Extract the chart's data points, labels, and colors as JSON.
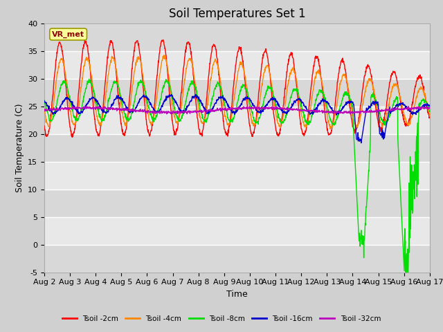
{
  "title": "Soil Temperatures Set 1",
  "xlabel": "Time",
  "ylabel": "Soil Temperature (C)",
  "ylim": [
    -5,
    40
  ],
  "yticks": [
    -5,
    0,
    5,
    10,
    15,
    20,
    25,
    30,
    35,
    40
  ],
  "date_labels": [
    "Aug 2",
    "Aug 3",
    "Aug 4",
    "Aug 5",
    "Aug 6",
    "Aug 7",
    "Aug 8",
    "Aug 9",
    "Aug 10",
    "Aug 11",
    "Aug 12",
    "Aug 13",
    "Aug 14",
    "Aug 15",
    "Aug 16",
    "Aug 17"
  ],
  "series_colors": [
    "#ff0000",
    "#ff8800",
    "#00dd00",
    "#0000cc",
    "#bb00bb"
  ],
  "series_labels": [
    "Tsoil -2cm",
    "Tsoil -4cm",
    "Tsoil -8cm",
    "Tsoil -16cm",
    "Tsoil -32cm"
  ],
  "legend_label": "VR_met",
  "fig_bg": "#d0d0d0",
  "ax_bg": "#e8e8e8",
  "band_light": "#e8e8e8",
  "band_dark": "#d8d8d8",
  "grid_color": "#ffffff",
  "title_fontsize": 12,
  "tick_fontsize": 8,
  "axis_label_fontsize": 9
}
